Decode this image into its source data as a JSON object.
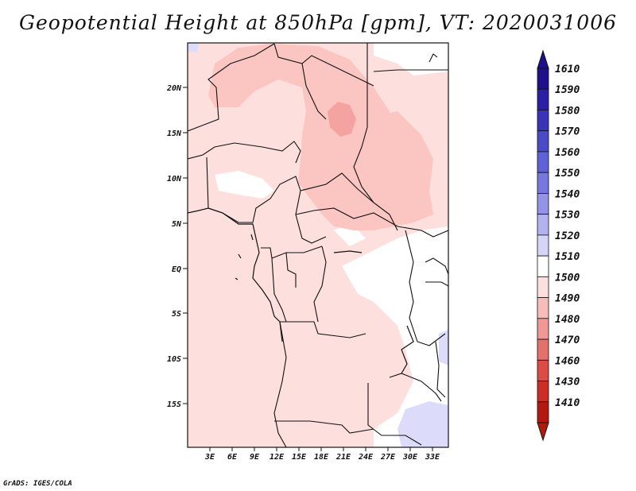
{
  "title": "Geopotential Height at 850hPa [gpm], VT: 2020031006",
  "credit": "GrADS: IGES/COLA",
  "map": {
    "lat_labels": [
      "20N",
      "15N",
      "10N",
      "5N",
      "EQ",
      "5S",
      "10S",
      "15S"
    ],
    "lon_labels": [
      "3E",
      "6E",
      "9E",
      "12E",
      "15E",
      "18E",
      "21E",
      "24E",
      "27E",
      "30E",
      "33E"
    ],
    "field_colors": {
      "pink_light": "#fde0de",
      "pink_mid": "#fbc5c2",
      "pink_dark": "#f5a3a0",
      "white": "#ffffff",
      "lavender": "#dcdcfa"
    }
  },
  "legend": {
    "labels": [
      "1610",
      "1590",
      "1580",
      "1570",
      "1560",
      "1550",
      "1540",
      "1530",
      "1520",
      "1510",
      "1500",
      "1490",
      "1480",
      "1470",
      "1460",
      "1430",
      "1410"
    ],
    "colors": [
      "#1e0f8c",
      "#2a1fa6",
      "#3a35b8",
      "#4b4bc8",
      "#5f62d6",
      "#7777e0",
      "#9393e8",
      "#b2b2f1",
      "#d5d5f8",
      "#ffffff",
      "#fde0de",
      "#f8bcb9",
      "#ef9895",
      "#e5716c",
      "#dc4b44",
      "#cc2d25",
      "#b3190f"
    ]
  }
}
